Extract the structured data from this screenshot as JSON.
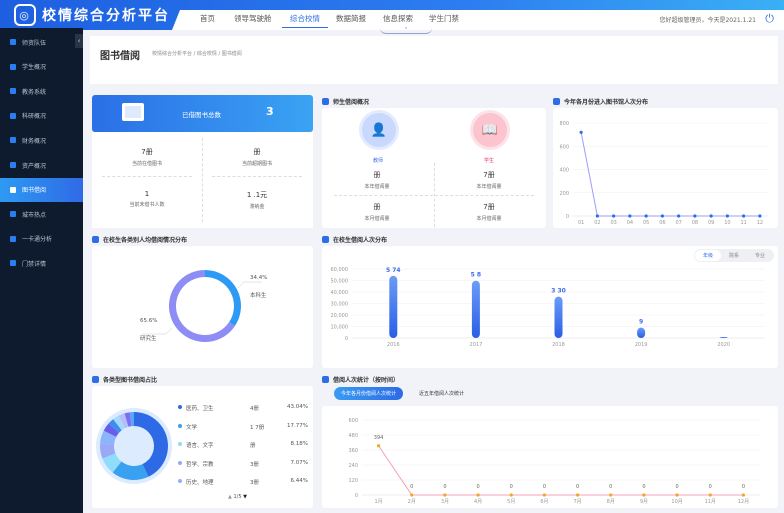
{
  "app": {
    "title": "校情综合分析平台",
    "greeting": "您好超级管理员，今天是2021.1.21"
  },
  "nav": [
    {
      "label": "首页"
    },
    {
      "label": "领导驾驶舱"
    },
    {
      "label": "综合校情"
    },
    {
      "label": "数据简报"
    },
    {
      "label": "信息探索"
    },
    {
      "label": "学生门禁"
    }
  ],
  "nav_active": 2,
  "sidebar": {
    "items": [
      {
        "label": "师资队伍"
      },
      {
        "label": "学生概况"
      },
      {
        "label": "教务系统"
      },
      {
        "label": "科研概况"
      },
      {
        "label": "财务概况"
      },
      {
        "label": "资产概况"
      },
      {
        "label": "图书借阅"
      },
      {
        "label": "城市热点"
      },
      {
        "label": "一卡通分析"
      },
      {
        "label": "门禁详情"
      }
    ],
    "active": 6
  },
  "page": {
    "title": "图书借阅",
    "breadcrumb": "校情综合分析平台 / 综合校情 / 图书借阅"
  },
  "summary": {
    "banner_label": "已借图书总数",
    "banner_value": "3",
    "stats": [
      {
        "value": "7册",
        "label": "当前在借图书"
      },
      {
        "value": "册",
        "label": "当前超期图书"
      },
      {
        "value": "1",
        "label": "当前未借书人数"
      },
      {
        "value": "1  .1元",
        "label": "滞纳金"
      }
    ]
  },
  "teacher_student": {
    "title": "师生借阅概况",
    "teacher": {
      "label": "教师",
      "year_value": "册",
      "year_label": "本年借阅量",
      "month_value": "册",
      "month_label": "本月借阅量"
    },
    "student": {
      "label": "学生",
      "year_value": "7册",
      "year_label": "本年借阅量",
      "month_value": "7册",
      "month_label": "本月借阅量"
    }
  },
  "colors": {
    "accent": "#2d6ee8",
    "sidebar_bg": "#0e1a2d",
    "teacher": "#5b8ef5",
    "student": "#f0506e"
  },
  "chart_data": [
    {
      "type": "line",
      "title": "今年各月份进入图书馆人次分布",
      "categories": [
        "01",
        "02",
        "03",
        "04",
        "05",
        "06",
        "07",
        "08",
        "09",
        "10",
        "11",
        "12"
      ],
      "values": [
        720,
        0,
        0,
        0,
        0,
        0,
        0,
        0,
        0,
        0,
        0,
        0
      ],
      "ylim": [
        0,
        800
      ],
      "yticks": [
        "0",
        "200",
        "400",
        "600",
        "800"
      ],
      "grid": true
    },
    {
      "type": "pie",
      "title": "在校生各类别人均借阅情况分布",
      "donut": true,
      "slices": [
        {
          "name": "本科生",
          "value": 34.4,
          "label": "34.4%",
          "color": "#2d9af5"
        },
        {
          "name": "研究生",
          "value": 65.6,
          "label": "65.6%",
          "color": "#8e8cf5"
        }
      ]
    },
    {
      "type": "bar",
      "title": "在校生借阅人次分布",
      "tabs": [
        "年级",
        "院系",
        "专业"
      ],
      "active_tab": 0,
      "categories": [
        "2016",
        "2017",
        "2018",
        "2019",
        "2020"
      ],
      "values": [
        53974,
        49808,
        35930,
        9000,
        900
      ],
      "data_labels": [
        "5  74",
        "5  8",
        "3  30",
        "9",
        ""
      ],
      "ylim": [
        0,
        60000
      ],
      "yticks": [
        "0",
        "10,000",
        "20,000",
        "30,000",
        "40,000",
        "50,000",
        "60,000"
      ],
      "grid": true
    },
    {
      "type": "pie",
      "title": "各类型图书借阅占比",
      "donut": true,
      "pager": "1/5",
      "slices": [
        {
          "name": "医药、卫生",
          "count": "4册",
          "value": 43.04,
          "label": "43.04%",
          "color": "#2f6ae6"
        },
        {
          "name": "文学",
          "count": "1  7册",
          "value": 17.77,
          "label": "17.77%",
          "color": "#3aa0f0"
        },
        {
          "name": "语言、文字",
          "count": "册",
          "value": 8.18,
          "label": "8.18%",
          "color": "#8fdcfb"
        },
        {
          "name": "哲学、宗教",
          "count": "3册",
          "value": 7.07,
          "label": "7.07%",
          "color": "#9aa8f6"
        },
        {
          "name": "历史、地理",
          "count": "3册",
          "value": 6.44,
          "label": "6.44%",
          "color": "#8cb4fb"
        },
        {
          "value": 4,
          "color": "#6a5ee8"
        },
        {
          "value": 3,
          "color": "#3d8cf0"
        },
        {
          "value": 3,
          "color": "#a6d8fb"
        },
        {
          "value": 3,
          "color": "#b3c0f8"
        },
        {
          "value": 2.5,
          "color": "#7f6ff0"
        },
        {
          "value": 2,
          "color": "#5aa8f4"
        }
      ]
    },
    {
      "type": "line",
      "title": "借阅人次统计（按时间）",
      "tabs": [
        "今年各月份借阅人次统计",
        "近五年借阅人次统计"
      ],
      "active_tab": 0,
      "categories": [
        "1月",
        "2月",
        "3月",
        "4月",
        "5月",
        "6月",
        "7月",
        "8月",
        "9月",
        "10月",
        "11月",
        "12月"
      ],
      "values": [
        394,
        0,
        0,
        0,
        0,
        0,
        0,
        0,
        0,
        0,
        0,
        0
      ],
      "ylim": [
        0,
        600
      ],
      "yticks": [
        "0",
        "120",
        "240",
        "360",
        "480",
        "600"
      ],
      "grid": true
    }
  ]
}
